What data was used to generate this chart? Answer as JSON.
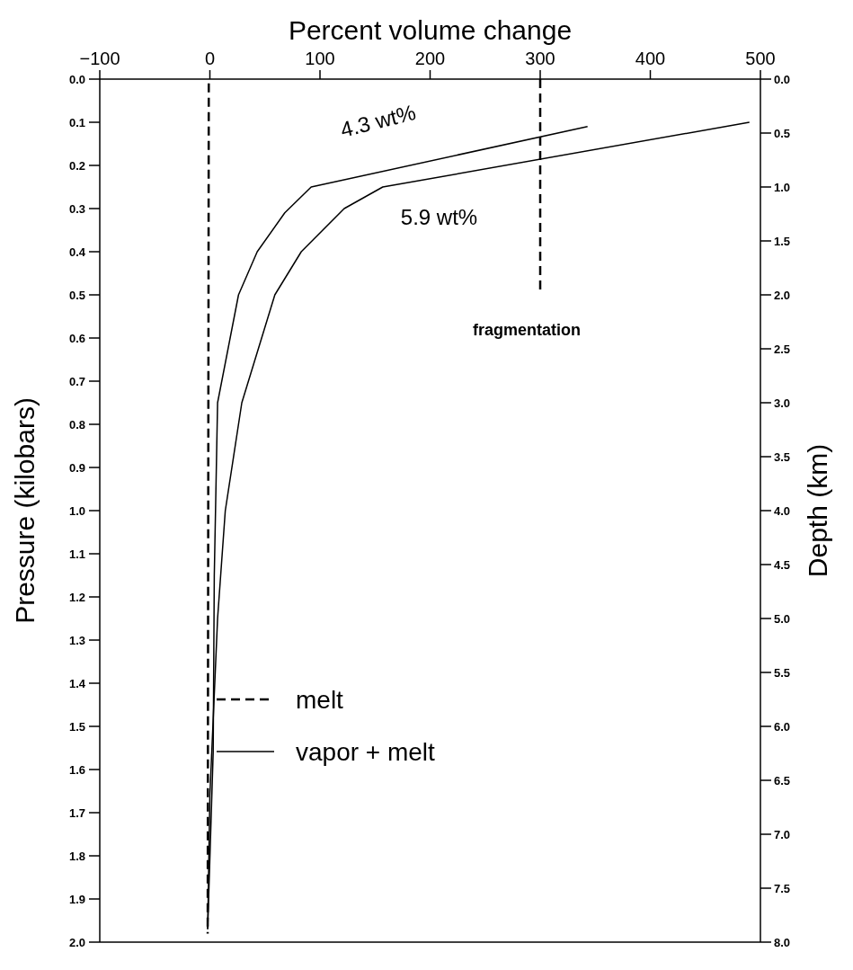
{
  "chart_data": {
    "type": "line",
    "xlabel": "Percent volume change",
    "ylabel": "Pressure (kilobars)",
    "y2label": "Depth (km)",
    "xlim": [
      -100,
      500
    ],
    "xticks": [
      -100,
      0,
      100,
      200,
      300,
      400,
      500
    ],
    "ylim": [
      2,
      0
    ],
    "yticks": [
      {
        "value": 0,
        "label": "0.0"
      },
      0.1,
      0.2,
      0.3,
      0.4,
      0.5,
      0.6,
      0.7,
      0.8,
      0.9,
      {
        "value": 1,
        "label": "1.0"
      },
      1.1,
      1.2,
      1.3,
      1.4,
      1.5,
      1.6,
      1.7,
      1.8,
      1.9,
      {
        "value": 2,
        "label": "2.0"
      }
    ],
    "y2lim": [
      8,
      0
    ],
    "y2ticks": [
      {
        "value": 0,
        "label": "0.0"
      },
      0.5,
      {
        "value": 1,
        "label": "1.0"
      },
      1.5,
      {
        "value": 2,
        "label": "2.0"
      },
      2.5,
      {
        "value": 3,
        "label": "3.0"
      },
      3.5,
      {
        "value": 4,
        "label": "4.0"
      },
      4.5,
      {
        "value": 5,
        "label": "5.0"
      },
      5.5,
      {
        "value": 6,
        "label": "6.0"
      },
      6.5,
      {
        "value": 7,
        "label": "7.0"
      },
      7.5,
      {
        "value": 8,
        "label": "8.0"
      }
    ],
    "series": [
      {
        "name": "melt",
        "color": "#000000",
        "line_style": "dashed",
        "x": [
          -1,
          -2
        ],
        "values": [
          0.01,
          1.98
        ]
      },
      {
        "name": "vapor + melt",
        "color": "#000000",
        "line_style": "solid",
        "x": [
          343,
          92,
          68,
          43,
          26,
          7,
          4,
          3,
          -2
        ],
        "values": [
          0.11,
          0.25,
          0.31,
          0.4,
          0.5,
          0.75,
          1.15,
          1.56,
          1.97
        ]
      },
      {
        "color": "#000000",
        "line_style": "solid",
        "x": [
          490,
          157,
          122,
          83,
          59,
          29,
          14,
          7,
          0,
          -2
        ],
        "values": [
          0.1,
          0.25,
          0.3,
          0.4,
          0.5,
          0.75,
          1.0,
          1.25,
          1.66,
          1.97
        ]
      },
      {
        "color": "#000000",
        "line_style": "dashed",
        "x": [
          300,
          300
        ],
        "values": [
          0.0,
          0.49
        ]
      }
    ],
    "annotations": [
      "4.3 wt%",
      "5.9 wt%",
      "fragmentation"
    ],
    "marker": "none",
    "legend": "bottom"
  }
}
